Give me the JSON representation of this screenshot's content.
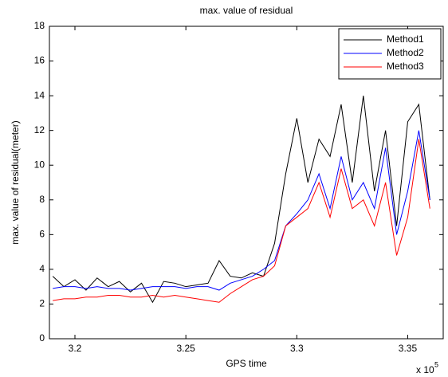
{
  "chart_data": {
    "type": "line",
    "title": "max. value of residual",
    "x_label": "GPS time",
    "y_label": "max. value of residual(meter)",
    "x_multiplier": "x 10",
    "x_multiplier_exponent": "5",
    "x": [
      3.19,
      3.195,
      3.2,
      3.205,
      3.21,
      3.215,
      3.22,
      3.225,
      3.23,
      3.235,
      3.24,
      3.245,
      3.25,
      3.255,
      3.26,
      3.265,
      3.27,
      3.275,
      3.28,
      3.285,
      3.29,
      3.295,
      3.3,
      3.305,
      3.31,
      3.315,
      3.32,
      3.325,
      3.33,
      3.335,
      3.34,
      3.345,
      3.35,
      3.355,
      3.36
    ],
    "series": [
      {
        "name": "Method1",
        "color": "#000000",
        "values": [
          3.6,
          3.0,
          3.4,
          2.8,
          3.5,
          3.0,
          3.3,
          2.7,
          3.2,
          2.1,
          3.3,
          3.2,
          3.0,
          3.1,
          3.2,
          4.5,
          3.6,
          3.5,
          3.8,
          3.6,
          5.5,
          9.5,
          12.7,
          9.0,
          11.5,
          10.5,
          13.5,
          9.0,
          14.0,
          8.5,
          12.0,
          6.5,
          12.5,
          13.5,
          8.0
        ]
      },
      {
        "name": "Method2",
        "color": "#0000ff",
        "values": [
          2.9,
          3.0,
          3.0,
          2.9,
          3.0,
          2.9,
          2.9,
          2.8,
          2.9,
          3.0,
          3.0,
          3.0,
          2.9,
          3.0,
          3.0,
          2.8,
          3.2,
          3.4,
          3.6,
          4.0,
          4.5,
          6.5,
          7.2,
          8.0,
          9.5,
          7.5,
          10.5,
          8.0,
          9.0,
          7.5,
          11.0,
          6.0,
          8.5,
          12.0,
          8.0
        ]
      },
      {
        "name": "Method3",
        "color": "#ff0000",
        "values": [
          2.2,
          2.3,
          2.3,
          2.4,
          2.4,
          2.5,
          2.5,
          2.4,
          2.4,
          2.5,
          2.4,
          2.5,
          2.4,
          2.3,
          2.2,
          2.1,
          2.6,
          3.0,
          3.4,
          3.6,
          4.2,
          6.5,
          7.0,
          7.5,
          9.0,
          7.0,
          9.8,
          7.5,
          8.0,
          6.5,
          9.0,
          4.8,
          7.0,
          11.5,
          7.5
        ]
      }
    ],
    "xlim": [
      3.1885,
      3.366
    ],
    "xticks": [
      3.2,
      3.25,
      3.3,
      3.35
    ],
    "ylim": [
      0,
      18
    ],
    "yticks": [
      0,
      2,
      4,
      6,
      8,
      10,
      12,
      14,
      16,
      18
    ],
    "grid": false,
    "legend": "top-right"
  }
}
